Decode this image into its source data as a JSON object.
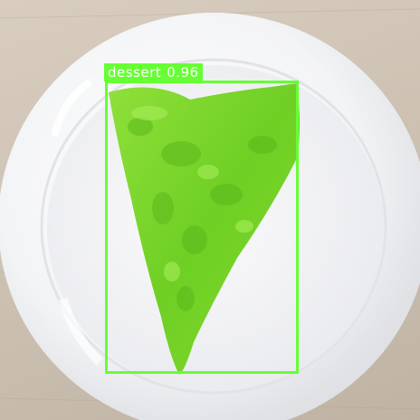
{
  "detections": [
    {
      "label": "dessert",
      "confidence": "0.96",
      "color": "#66ff33"
    }
  ],
  "colors": {
    "table": "#d1c5b6",
    "plate": "#f7f7f9",
    "food_mask": "#7fd92a",
    "box": "#66ff33"
  }
}
